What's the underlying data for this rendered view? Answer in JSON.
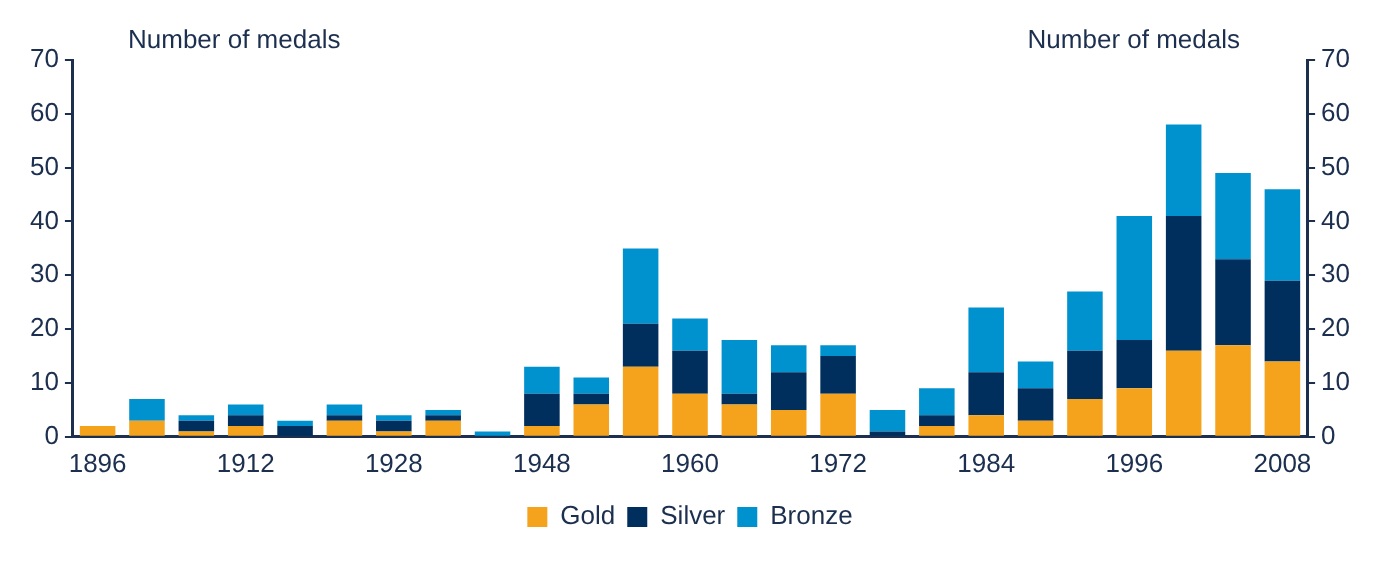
{
  "chart_data": {
    "type": "bar",
    "stacked": true,
    "ylabel": "Number of medals",
    "y2label": "Number of medals",
    "categories": [
      "1896",
      null,
      null,
      "1912",
      null,
      null,
      "1928",
      null,
      null,
      "1948",
      null,
      null,
      "1960",
      null,
      null,
      "1972",
      null,
      null,
      "1984",
      null,
      null,
      "1996",
      null,
      null,
      "2008"
    ],
    "series": [
      {
        "name": "Gold",
        "color": "#f5a31d",
        "values": [
          2,
          3,
          1,
          2,
          0,
          3,
          1,
          3,
          0,
          2,
          6,
          13,
          8,
          6,
          5,
          8,
          0,
          2,
          4,
          3,
          7,
          9,
          16,
          17,
          14
        ]
      },
      {
        "name": "Silver",
        "color": "#002e5d",
        "values": [
          0,
          0,
          2,
          2,
          2,
          1,
          2,
          1,
          0,
          6,
          2,
          8,
          8,
          2,
          7,
          7,
          1,
          2,
          8,
          6,
          9,
          9,
          25,
          16,
          15
        ]
      },
      {
        "name": "Bronze",
        "color": "#0092cf",
        "values": [
          0,
          4,
          1,
          2,
          1,
          2,
          1,
          1,
          1,
          5,
          3,
          14,
          6,
          10,
          5,
          2,
          4,
          5,
          12,
          5,
          11,
          23,
          17,
          16,
          17
        ]
      }
    ],
    "ylim": [
      0,
      70
    ],
    "yticks": [
      0,
      10,
      20,
      30,
      40,
      50,
      60,
      70
    ],
    "y2lim": [
      0,
      70
    ],
    "y2ticks": [
      0,
      10,
      20,
      30,
      40,
      50,
      60,
      70
    ],
    "legend": "bottom"
  }
}
